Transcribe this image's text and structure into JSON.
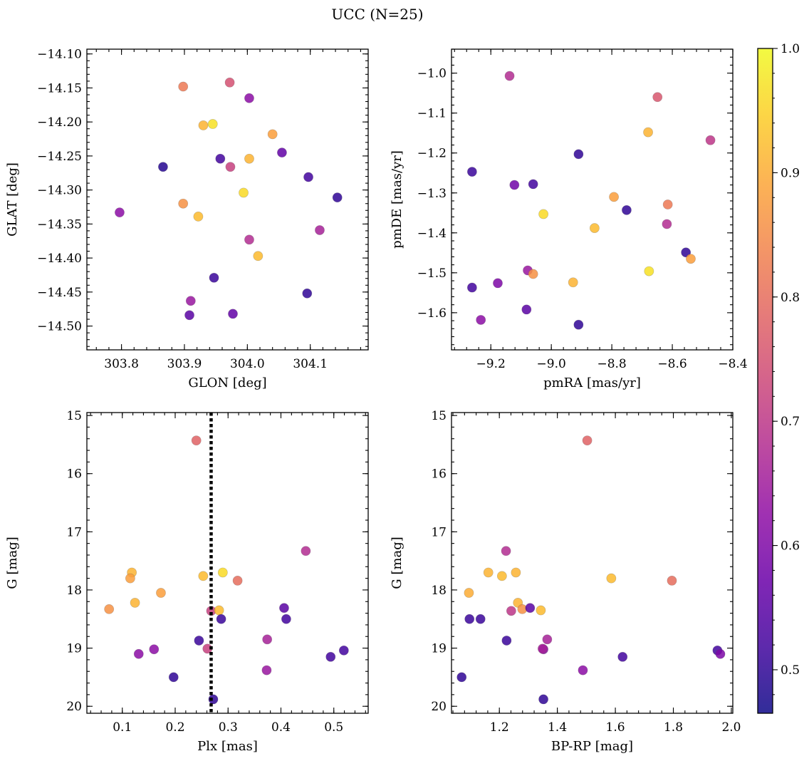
{
  "figure": {
    "title": "UCC (N=25)"
  },
  "chart_data": [
    {
      "type": "scatter",
      "xlabel": "GLON [deg]",
      "ylabel": "GLAT [deg]",
      "xlim": [
        303.745,
        304.192
      ],
      "ylim": [
        -14.535,
        -14.093
      ],
      "y_inverted": false,
      "xticks": [
        303.8,
        303.9,
        304.0,
        304.1
      ],
      "xtick_labels": [
        "303.8",
        "303.9",
        "304.0",
        "304.1"
      ],
      "yticks": [
        -14.1,
        -14.15,
        -14.2,
        -14.25,
        -14.3,
        -14.35,
        -14.4,
        -14.45,
        -14.5
      ],
      "ytick_labels": [
        "−14.10",
        "−14.15",
        "−14.20",
        "−14.25",
        "−14.30",
        "−14.35",
        "−14.40",
        "−14.45",
        "−14.50"
      ],
      "points": [
        {
          "x": 303.898,
          "y": -14.148,
          "c": 0.82
        },
        {
          "x": 303.972,
          "y": -14.142,
          "c": 0.75
        },
        {
          "x": 304.003,
          "y": -14.165,
          "c": 0.62
        },
        {
          "x": 303.93,
          "y": -14.205,
          "c": 0.91
        },
        {
          "x": 303.945,
          "y": -14.203,
          "c": 0.97
        },
        {
          "x": 304.04,
          "y": -14.218,
          "c": 0.88
        },
        {
          "x": 303.957,
          "y": -14.254,
          "c": 0.52
        },
        {
          "x": 304.003,
          "y": -14.254,
          "c": 0.91
        },
        {
          "x": 303.973,
          "y": -14.266,
          "c": 0.72
        },
        {
          "x": 304.055,
          "y": -14.245,
          "c": 0.56
        },
        {
          "x": 303.866,
          "y": -14.266,
          "c": 0.49
        },
        {
          "x": 304.097,
          "y": -14.281,
          "c": 0.52
        },
        {
          "x": 303.994,
          "y": -14.304,
          "c": 0.96
        },
        {
          "x": 304.143,
          "y": -14.311,
          "c": 0.5
        },
        {
          "x": 303.797,
          "y": -14.333,
          "c": 0.62
        },
        {
          "x": 303.898,
          "y": -14.32,
          "c": 0.86
        },
        {
          "x": 303.922,
          "y": -14.339,
          "c": 0.92
        },
        {
          "x": 304.115,
          "y": -14.359,
          "c": 0.66
        },
        {
          "x": 304.003,
          "y": -14.373,
          "c": 0.68
        },
        {
          "x": 304.017,
          "y": -14.397,
          "c": 0.92
        },
        {
          "x": 303.947,
          "y": -14.429,
          "c": 0.51
        },
        {
          "x": 304.095,
          "y": -14.452,
          "c": 0.5
        },
        {
          "x": 303.91,
          "y": -14.463,
          "c": 0.64
        },
        {
          "x": 303.908,
          "y": -14.484,
          "c": 0.55
        },
        {
          "x": 303.977,
          "y": -14.482,
          "c": 0.56
        }
      ]
    },
    {
      "type": "scatter",
      "xlabel": "pmRA [mas/yr]",
      "ylabel": "pmDE [mas/yr]",
      "xlim": [
        -9.33,
        -8.4
      ],
      "ylim": [
        -1.693,
        -0.94
      ],
      "y_inverted": false,
      "xticks": [
        -9.2,
        -9.0,
        -8.8,
        -8.6,
        -8.4
      ],
      "xtick_labels": [
        "−9.2",
        "−9.0",
        "−8.8",
        "−8.6",
        "−8.4"
      ],
      "yticks": [
        -1.0,
        -1.1,
        -1.2,
        -1.3,
        -1.4,
        -1.5,
        -1.6
      ],
      "ytick_labels": [
        "−1.0",
        "−1.1",
        "−1.2",
        "−1.3",
        "−1.4",
        "−1.5",
        "−1.6"
      ],
      "points": [
        {
          "x": -9.138,
          "y": -1.007,
          "c": 0.68
        },
        {
          "x": -8.649,
          "y": -1.06,
          "c": 0.76
        },
        {
          "x": -8.68,
          "y": -1.148,
          "c": 0.91
        },
        {
          "x": -8.474,
          "y": -1.168,
          "c": 0.7
        },
        {
          "x": -8.91,
          "y": -1.203,
          "c": 0.5
        },
        {
          "x": -9.262,
          "y": -1.247,
          "c": 0.51
        },
        {
          "x": -9.122,
          "y": -1.28,
          "c": 0.58
        },
        {
          "x": -9.06,
          "y": -1.278,
          "c": 0.52
        },
        {
          "x": -8.793,
          "y": -1.31,
          "c": 0.88
        },
        {
          "x": -8.615,
          "y": -1.329,
          "c": 0.82
        },
        {
          "x": -8.751,
          "y": -1.343,
          "c": 0.5
        },
        {
          "x": -9.026,
          "y": -1.353,
          "c": 0.96
        },
        {
          "x": -8.618,
          "y": -1.378,
          "c": 0.68
        },
        {
          "x": -8.857,
          "y": -1.388,
          "c": 0.92
        },
        {
          "x": -8.555,
          "y": -1.449,
          "c": 0.5
        },
        {
          "x": -8.539,
          "y": -1.465,
          "c": 0.88
        },
        {
          "x": -9.078,
          "y": -1.494,
          "c": 0.64
        },
        {
          "x": -9.06,
          "y": -1.503,
          "c": 0.86
        },
        {
          "x": -8.677,
          "y": -1.496,
          "c": 0.97
        },
        {
          "x": -9.262,
          "y": -1.537,
          "c": 0.52
        },
        {
          "x": -9.177,
          "y": -1.526,
          "c": 0.6
        },
        {
          "x": -8.928,
          "y": -1.524,
          "c": 0.91
        },
        {
          "x": -9.082,
          "y": -1.592,
          "c": 0.55
        },
        {
          "x": -9.233,
          "y": -1.618,
          "c": 0.62
        },
        {
          "x": -8.91,
          "y": -1.63,
          "c": 0.5
        }
      ]
    },
    {
      "type": "scatter",
      "xlabel": "Plx [mas]",
      "ylabel": "G [mag]",
      "xlim": [
        0.033,
        0.565
      ],
      "ylim": [
        20.12,
        14.95
      ],
      "y_inverted": true,
      "vline": {
        "x": 0.268,
        "style": "dotted"
      },
      "xticks": [
        0.1,
        0.2,
        0.3,
        0.4,
        0.5
      ],
      "xtick_labels": [
        "0.1",
        "0.2",
        "0.3",
        "0.4",
        "0.5"
      ],
      "yticks": [
        15,
        16,
        17,
        18,
        19,
        20
      ],
      "ytick_labels": [
        "15",
        "16",
        "17",
        "18",
        "19",
        "20"
      ],
      "points": [
        {
          "x": 0.24,
          "y": 15.43,
          "c": 0.78
        },
        {
          "x": 0.447,
          "y": 17.33,
          "c": 0.68
        },
        {
          "x": 0.118,
          "y": 17.7,
          "c": 0.91
        },
        {
          "x": 0.29,
          "y": 17.7,
          "c": 0.96
        },
        {
          "x": 0.115,
          "y": 17.8,
          "c": 0.88
        },
        {
          "x": 0.253,
          "y": 17.76,
          "c": 0.92
        },
        {
          "x": 0.318,
          "y": 17.84,
          "c": 0.8
        },
        {
          "x": 0.173,
          "y": 18.05,
          "c": 0.88
        },
        {
          "x": 0.124,
          "y": 18.22,
          "c": 0.91
        },
        {
          "x": 0.406,
          "y": 18.31,
          "c": 0.55
        },
        {
          "x": 0.075,
          "y": 18.33,
          "c": 0.86
        },
        {
          "x": 0.268,
          "y": 18.36,
          "c": 0.72
        },
        {
          "x": 0.283,
          "y": 18.35,
          "c": 0.92
        },
        {
          "x": 0.41,
          "y": 18.5,
          "c": 0.52
        },
        {
          "x": 0.287,
          "y": 18.5,
          "c": 0.51
        },
        {
          "x": 0.374,
          "y": 18.85,
          "c": 0.66
        },
        {
          "x": 0.245,
          "y": 18.87,
          "c": 0.51
        },
        {
          "x": 0.16,
          "y": 19.02,
          "c": 0.62
        },
        {
          "x": 0.261,
          "y": 19.01,
          "c": 0.72
        },
        {
          "x": 0.131,
          "y": 19.1,
          "c": 0.62
        },
        {
          "x": 0.519,
          "y": 19.04,
          "c": 0.52
        },
        {
          "x": 0.494,
          "y": 19.15,
          "c": 0.52
        },
        {
          "x": 0.373,
          "y": 19.38,
          "c": 0.64
        },
        {
          "x": 0.197,
          "y": 19.5,
          "c": 0.5
        },
        {
          "x": 0.272,
          "y": 19.88,
          "c": 0.5
        }
      ]
    },
    {
      "type": "scatter",
      "xlabel": "BP-RP [mag]",
      "ylabel": "G [mag]",
      "xlim": [
        1.035,
        2.005
      ],
      "ylim": [
        20.12,
        14.95
      ],
      "y_inverted": true,
      "xticks": [
        1.2,
        1.4,
        1.6,
        1.8,
        2.0
      ],
      "xtick_labels": [
        "1.2",
        "1.4",
        "1.6",
        "1.8",
        "2.0"
      ],
      "yticks": [
        15,
        16,
        17,
        18,
        19,
        20
      ],
      "ytick_labels": [
        "15",
        "16",
        "17",
        "18",
        "19",
        "20"
      ],
      "points": [
        {
          "x": 1.503,
          "y": 15.43,
          "c": 0.78
        },
        {
          "x": 1.223,
          "y": 17.33,
          "c": 0.68
        },
        {
          "x": 1.162,
          "y": 17.7,
          "c": 0.91
        },
        {
          "x": 1.209,
          "y": 17.76,
          "c": 0.92
        },
        {
          "x": 1.257,
          "y": 17.7,
          "c": 0.91
        },
        {
          "x": 1.586,
          "y": 17.8,
          "c": 0.92
        },
        {
          "x": 1.795,
          "y": 17.84,
          "c": 0.8
        },
        {
          "x": 1.095,
          "y": 18.05,
          "c": 0.9
        },
        {
          "x": 1.264,
          "y": 18.22,
          "c": 0.91
        },
        {
          "x": 1.279,
          "y": 18.33,
          "c": 0.86
        },
        {
          "x": 1.306,
          "y": 18.31,
          "c": 0.55
        },
        {
          "x": 1.241,
          "y": 18.36,
          "c": 0.7
        },
        {
          "x": 1.343,
          "y": 18.35,
          "c": 0.92
        },
        {
          "x": 1.097,
          "y": 18.5,
          "c": 0.51
        },
        {
          "x": 1.135,
          "y": 18.5,
          "c": 0.51
        },
        {
          "x": 1.365,
          "y": 18.85,
          "c": 0.66
        },
        {
          "x": 1.225,
          "y": 18.87,
          "c": 0.51
        },
        {
          "x": 1.352,
          "y": 19.02,
          "c": 0.62
        },
        {
          "x": 1.952,
          "y": 19.04,
          "c": 0.52
        },
        {
          "x": 1.962,
          "y": 19.1,
          "c": 0.6
        },
        {
          "x": 1.625,
          "y": 19.15,
          "c": 0.52
        },
        {
          "x": 1.488,
          "y": 19.38,
          "c": 0.62
        },
        {
          "x": 1.07,
          "y": 19.5,
          "c": 0.5
        },
        {
          "x": 1.352,
          "y": 19.88,
          "c": 0.5
        },
        {
          "x": 1.349,
          "y": 19.01,
          "c": 0.66
        }
      ]
    }
  ],
  "colorbar": {
    "cmap": "plasma",
    "range": [
      0.465,
      1.0
    ],
    "ticks": [
      0.5,
      0.6,
      0.7,
      0.8,
      0.9,
      1.0
    ],
    "tick_labels": [
      "0.5",
      "0.6",
      "0.7",
      "0.8",
      "0.9",
      "1.0"
    ]
  },
  "colors": {
    "marker_alpha": 0.85,
    "vline": "#000000"
  }
}
